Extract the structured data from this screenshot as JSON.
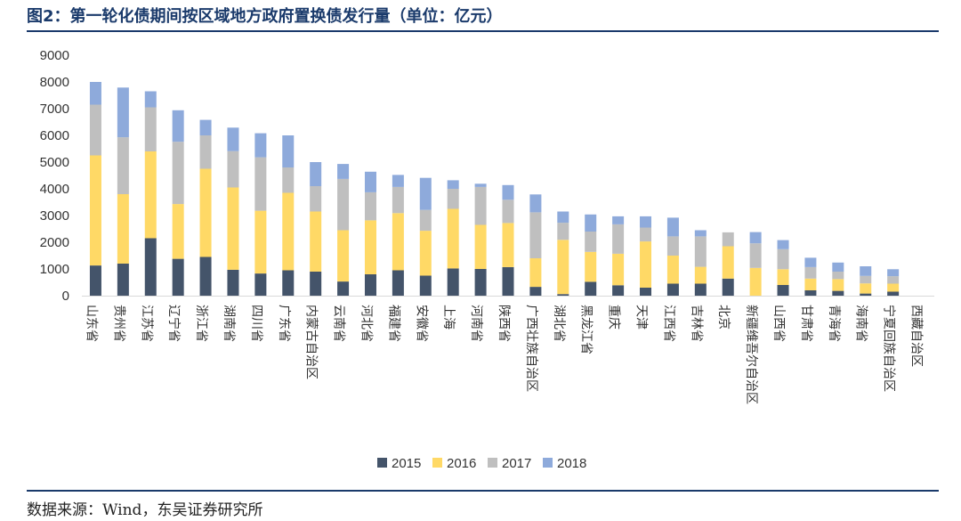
{
  "title": "图2：第一轮化债期间按区域地方政府置换债发行量（单位：亿元）",
  "source": "数据来源：Wind，东吴证券研究所",
  "chart_data": {
    "type": "bar",
    "stacked": true,
    "ylim": [
      0,
      9000
    ],
    "yticks": [
      0,
      1000,
      2000,
      3000,
      4000,
      5000,
      6000,
      7000,
      8000,
      9000
    ],
    "grid": false,
    "legend_position": "bottom",
    "categories": [
      "山东省",
      "贵州省",
      "江苏省",
      "辽宁省",
      "浙江省",
      "湖南省",
      "四川省",
      "广东省",
      "内蒙古自治区",
      "云南省",
      "河北省",
      "福建省",
      "安徽省",
      "上海",
      "河南省",
      "陕西省",
      "广西壮族自治区",
      "湖北省",
      "黑龙江省",
      "重庆",
      "天津",
      "江西省",
      "吉林省",
      "北京",
      "新疆维吾尔自治区",
      "山西省",
      "甘肃省",
      "青海省",
      "海南省",
      "宁夏回族自治区",
      "西藏自治区"
    ],
    "series": [
      {
        "name": "2015",
        "color": "#44546a",
        "values": [
          1130,
          1200,
          2150,
          1380,
          1450,
          970,
          830,
          950,
          900,
          530,
          800,
          950,
          750,
          1020,
          1000,
          1070,
          330,
          60,
          520,
          390,
          300,
          450,
          450,
          640,
          0,
          400,
          200,
          180,
          80,
          150,
          0
        ]
      },
      {
        "name": "2016",
        "color": "#ffd966",
        "values": [
          4120,
          2600,
          3250,
          2050,
          3300,
          3080,
          2350,
          2900,
          2250,
          1920,
          2020,
          2140,
          1680,
          2230,
          1650,
          1650,
          1070,
          2030,
          1120,
          1180,
          1730,
          1050,
          630,
          1210,
          1040,
          590,
          440,
          440,
          380,
          300,
          0
        ]
      },
      {
        "name": "2017",
        "color": "#bfbfbf",
        "values": [
          1900,
          2130,
          1650,
          2330,
          1250,
          1360,
          2000,
          950,
          950,
          1920,
          1050,
          980,
          780,
          750,
          1420,
          870,
          1720,
          640,
          760,
          1100,
          520,
          720,
          1140,
          520,
          920,
          750,
          430,
          280,
          280,
          280,
          0
        ]
      },
      {
        "name": "2018",
        "color": "#8eaadb",
        "values": [
          850,
          1860,
          600,
          1180,
          580,
          880,
          900,
          1200,
          900,
          560,
          770,
          450,
          1200,
          320,
          120,
          550,
          670,
          420,
          640,
          300,
          420,
          700,
          230,
          0,
          420,
          340,
          350,
          340,
          360,
          260,
          0
        ]
      }
    ]
  }
}
